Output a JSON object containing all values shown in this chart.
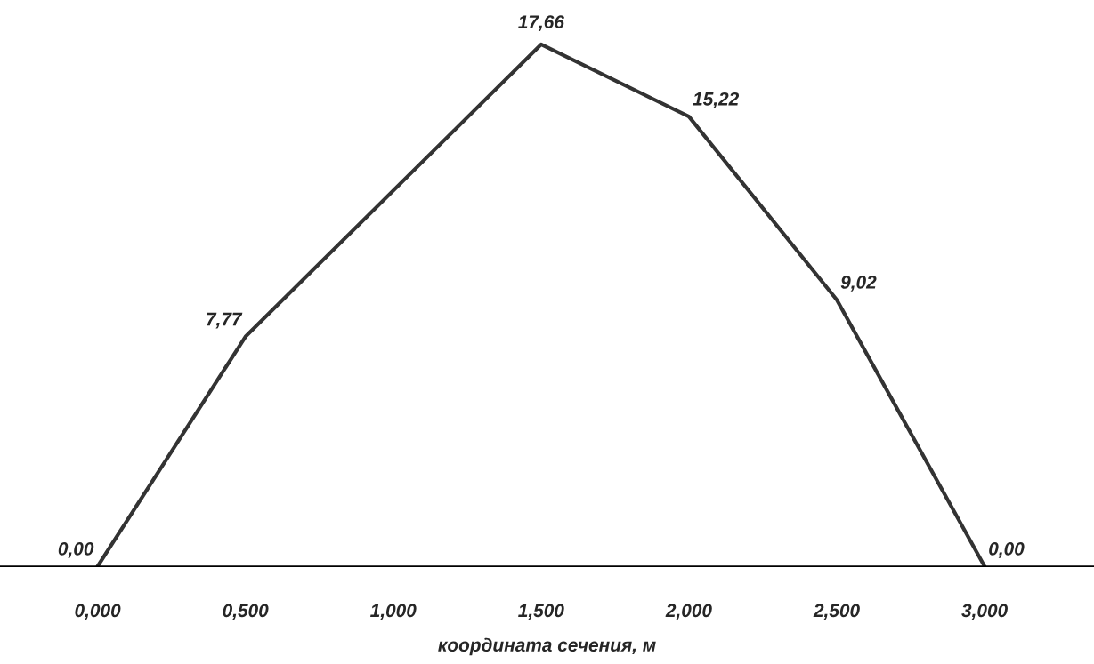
{
  "chart_data": {
    "type": "line",
    "xlabel": "координата сечения, м",
    "x": [
      0,
      0.5,
      1.5,
      2,
      2.5,
      3
    ],
    "series": [
      {
        "color": "#333333",
        "values": [
          0,
          7.77,
          17.66,
          15.22,
          9.02,
          0
        ],
        "value_labels": [
          "0,00",
          "7,77",
          "17,66",
          "15,22",
          "9,02",
          "0,00"
        ]
      }
    ],
    "xlim": [
      -0.33,
      3.37
    ],
    "xticks": [
      {
        "value": 0,
        "label": "0,000"
      },
      {
        "value": 0.5,
        "label": "0,500"
      },
      {
        "value": 1,
        "label": "1,000"
      },
      {
        "value": 1.5,
        "label": "1,500"
      },
      {
        "value": 2,
        "label": "2,000"
      },
      {
        "value": 2.5,
        "label": "2,500"
      },
      {
        "value": 3,
        "label": "3,000"
      }
    ],
    "grid": false,
    "legend": false,
    "marker": "none",
    "line_style": "solid"
  }
}
